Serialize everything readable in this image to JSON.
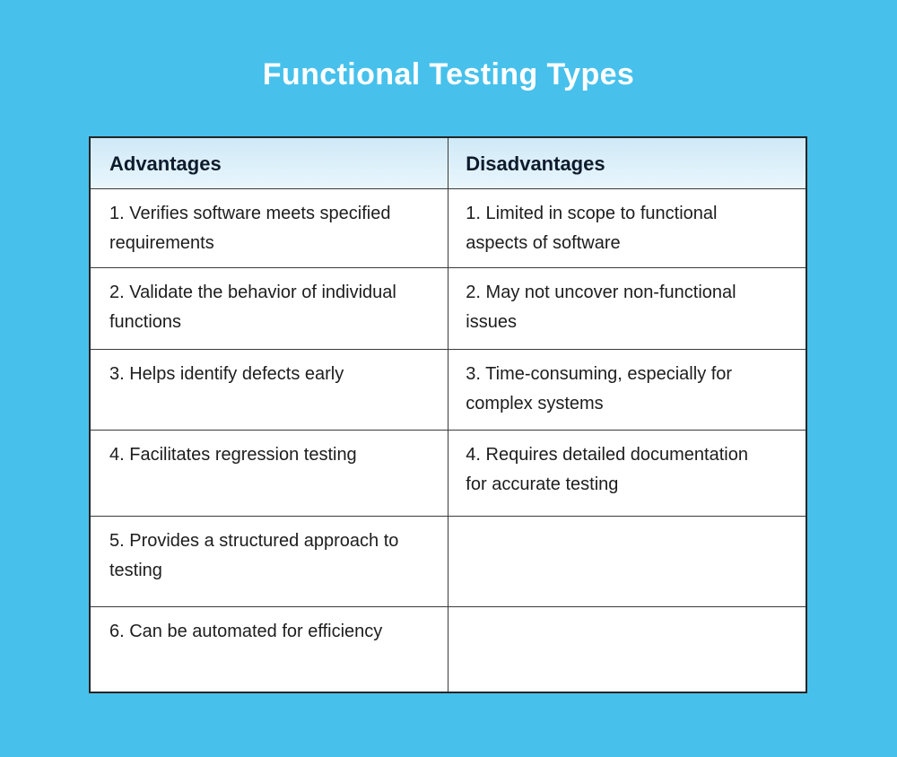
{
  "chart_data": {
    "type": "table",
    "title": "Functional Testing Types",
    "columns": [
      "Advantages",
      "Disadvantages"
    ],
    "rows": [
      [
        "1. Verifies software meets specified requirements",
        "1. Limited in scope to functional aspects of software"
      ],
      [
        "2. Validate the behavior of individual functions",
        "2. May not uncover non-functional issues"
      ],
      [
        "3. Helps identify defects early",
        "3. Time-consuming, especially for complex systems"
      ],
      [
        "4. Facilitates regression testing",
        "4. Requires detailed documentation for accurate testing"
      ],
      [
        "5. Provides a structured approach to testing",
        ""
      ],
      [
        "6. Can be automated for efficiency",
        ""
      ]
    ],
    "layout_hints": {
      "header_fill": "gradient light blue",
      "cell_fill": "white",
      "grid": "on"
    }
  },
  "colors": {
    "page_background": "#47c1ec",
    "title_text": "#ffffff",
    "header_fill_top": "#cfe9f7",
    "header_fill_bottom": "#e9f6fd",
    "header_text": "#0e1b2c",
    "body_text": "#1d1d1d",
    "border": "#2b2b2b",
    "cell_background": "#ffffff"
  }
}
